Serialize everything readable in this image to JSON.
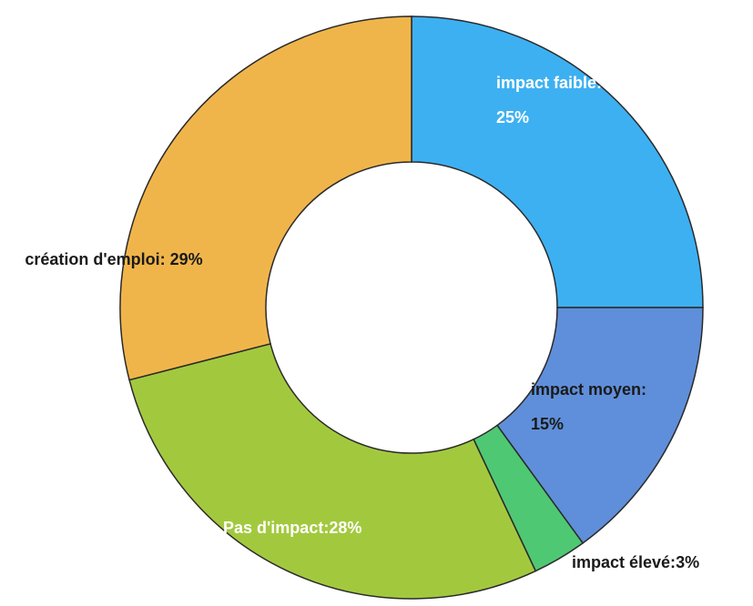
{
  "chart_data": {
    "type": "donut",
    "categories": [
      "impact faible:",
      "impact moyen:",
      "impact élevé:",
      "Pas d'impact:",
      "création d'emploi:"
    ],
    "values": [
      25,
      15,
      3,
      28,
      29
    ],
    "value_labels": [
      "25%",
      "15%",
      "3%",
      "28%",
      "29%"
    ],
    "colors": [
      "#3db0f2",
      "#5f8fda",
      "#4fc874",
      "#a2c93e",
      "#f0b54a"
    ]
  }
}
